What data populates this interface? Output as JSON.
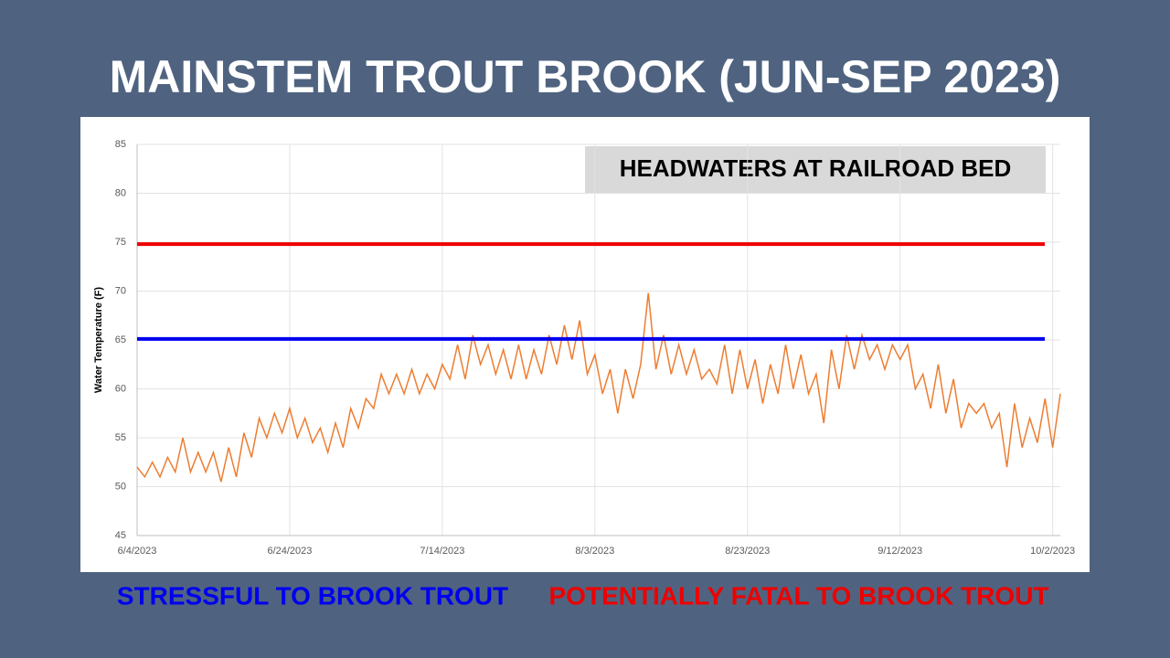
{
  "chart_data": {
    "type": "line",
    "title": "MAINSTEM TROUT BROOK (JUN-SEP 2023)",
    "annotation": "HEADWATERS AT RAILROAD BED",
    "y_label": "Water Temperature (F)",
    "x": [
      "6/4/2023",
      "6/5/2023",
      "6/6/2023",
      "6/7/2023",
      "6/8/2023",
      "6/9/2023",
      "6/10/2023",
      "6/11/2023",
      "6/12/2023",
      "6/13/2023",
      "6/14/2023",
      "6/15/2023",
      "6/16/2023",
      "6/17/2023",
      "6/18/2023",
      "6/19/2023",
      "6/20/2023",
      "6/21/2023",
      "6/22/2023",
      "6/23/2023",
      "6/24/2023",
      "6/25/2023",
      "6/26/2023",
      "6/27/2023",
      "6/28/2023",
      "6/29/2023",
      "6/30/2023",
      "7/1/2023",
      "7/2/2023",
      "7/3/2023",
      "7/4/2023",
      "7/5/2023",
      "7/6/2023",
      "7/7/2023",
      "7/8/2023",
      "7/9/2023",
      "7/10/2023",
      "7/11/2023",
      "7/12/2023",
      "7/13/2023",
      "7/14/2023",
      "7/15/2023",
      "7/16/2023",
      "7/17/2023",
      "7/18/2023",
      "7/19/2023",
      "7/20/2023",
      "7/21/2023",
      "7/22/2023",
      "7/23/2023",
      "7/24/2023",
      "7/25/2023",
      "7/26/2023",
      "7/27/2023",
      "7/28/2023",
      "7/29/2023",
      "7/30/2023",
      "7/31/2023",
      "8/1/2023",
      "8/2/2023",
      "8/3/2023",
      "8/4/2023",
      "8/5/2023",
      "8/6/2023",
      "8/7/2023",
      "8/8/2023",
      "8/9/2023",
      "8/10/2023",
      "8/11/2023",
      "8/12/2023",
      "8/13/2023",
      "8/14/2023",
      "8/15/2023",
      "8/16/2023",
      "8/17/2023",
      "8/18/2023",
      "8/19/2023",
      "8/20/2023",
      "8/21/2023",
      "8/22/2023",
      "8/23/2023",
      "8/24/2023",
      "8/25/2023",
      "8/26/2023",
      "8/27/2023",
      "8/28/2023",
      "8/29/2023",
      "8/30/2023",
      "8/31/2023",
      "9/1/2023",
      "9/2/2023",
      "9/3/2023",
      "9/4/2023",
      "9/5/2023",
      "9/6/2023",
      "9/7/2023",
      "9/8/2023",
      "9/9/2023",
      "9/10/2023",
      "9/11/2023",
      "9/12/2023",
      "9/13/2023",
      "9/14/2023",
      "9/15/2023",
      "9/16/2023",
      "9/17/2023",
      "9/18/2023",
      "9/19/2023",
      "9/20/2023",
      "9/21/2023",
      "9/22/2023",
      "9/23/2023",
      "9/24/2023",
      "9/25/2023",
      "9/26/2023",
      "9/27/2023",
      "9/28/2023",
      "9/29/2023",
      "9/30/2023",
      "10/1/2023",
      "10/2/2023",
      "10/3/2023"
    ],
    "series": [
      {
        "color": "#ed7d31",
        "values": [
          52,
          51,
          52.5,
          51,
          53,
          51.5,
          55,
          51.5,
          53.5,
          51.5,
          53.5,
          50.5,
          54,
          51,
          55.5,
          53,
          57,
          55,
          57.5,
          55.5,
          58,
          55,
          57,
          54.5,
          56,
          53.5,
          56.5,
          54,
          58,
          56,
          59,
          58,
          61.5,
          59.5,
          61.5,
          59.5,
          62,
          59.5,
          61.5,
          60,
          62.5,
          61,
          64.5,
          61,
          65.5,
          62.5,
          64.5,
          61.5,
          64,
          61,
          64.5,
          61,
          64,
          61.5,
          65.5,
          62.5,
          66.5,
          63,
          67,
          61.5,
          63.5,
          59.5,
          62,
          57.5,
          62,
          59,
          62.5,
          69.8,
          62,
          65.5,
          61.5,
          64.5,
          61.5,
          64,
          61,
          62,
          60.5,
          64.5,
          59.5,
          64,
          60,
          63,
          58.5,
          62.5,
          59.5,
          64.5,
          60,
          63.5,
          59.5,
          61.5,
          56.5,
          64,
          60,
          65.5,
          62,
          65.5,
          63,
          64.5,
          62,
          64.5,
          63,
          64.5,
          60,
          61.5,
          58,
          62.5,
          57.5,
          61,
          56,
          58.5,
          57.5,
          58.5,
          56,
          57.5,
          52,
          58.5,
          54,
          57,
          54.5,
          59,
          54,
          59.5
        ]
      }
    ],
    "reference_lines": [
      {
        "name": "STRESSFUL TO BROOK TROUT",
        "value": 65.1,
        "color": "#0000ee"
      },
      {
        "name": "POTENTIALLY FATAL TO BROOK TROUT",
        "value": 74.8,
        "color": "#ee0000"
      }
    ],
    "xlim": [
      "6/4/2023",
      "10/3/2023"
    ],
    "xticks": [
      "6/4/2023",
      "6/24/2023",
      "7/14/2023",
      "8/3/2023",
      "8/23/2023",
      "9/12/2023",
      "10/2/2023"
    ],
    "ylim": [
      45,
      85
    ],
    "yticks": [
      45,
      50,
      55,
      60,
      65,
      70,
      75,
      80,
      85
    ],
    "grid": true
  }
}
